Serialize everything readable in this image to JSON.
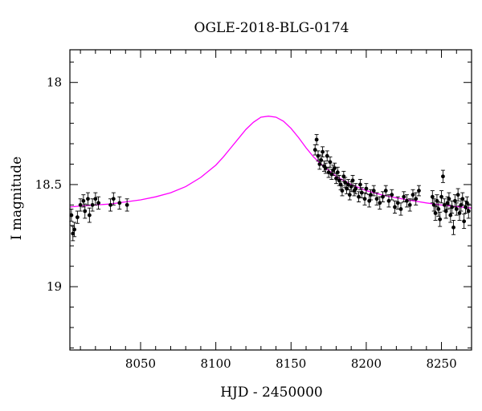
{
  "chart_data": {
    "type": "scatter",
    "title": "OGLE-2018-BLG-0174",
    "xlabel": "HJD - 2450000",
    "ylabel": "I magnitude",
    "xlim": [
      8003,
      8270
    ],
    "ylim": [
      19.31,
      17.84
    ],
    "y_inverted": true,
    "grid": false,
    "x_ticks": [
      8050,
      8100,
      8150,
      8200,
      8250
    ],
    "y_ticks": [
      18,
      18.5,
      19
    ],
    "colors": {
      "model": "#ff00ff",
      "points": "#000000"
    },
    "model": {
      "type": "line",
      "x": [
        8003,
        8010,
        8020,
        8030,
        8040,
        8050,
        8060,
        8070,
        8080,
        8090,
        8100,
        8105,
        8110,
        8115,
        8120,
        8125,
        8130,
        8135,
        8140,
        8145,
        8150,
        8155,
        8160,
        8165,
        8170,
        8175,
        8180,
        8190,
        8200,
        8210,
        8220,
        8230,
        8240,
        8250,
        8260,
        8270
      ],
      "y": [
        18.61,
        18.605,
        18.6,
        18.595,
        18.585,
        18.575,
        18.56,
        18.54,
        18.51,
        18.465,
        18.405,
        18.365,
        18.32,
        18.275,
        18.23,
        18.195,
        18.17,
        18.165,
        18.17,
        18.19,
        18.225,
        18.27,
        18.32,
        18.365,
        18.4,
        18.43,
        18.46,
        18.5,
        18.53,
        18.55,
        18.565,
        18.578,
        18.59,
        18.6,
        18.608,
        18.615
      ]
    },
    "points": {
      "type": "scatter",
      "x": [
        8004,
        8005,
        8006,
        8008,
        8010,
        8012,
        8013,
        8015,
        8016,
        8018,
        8020,
        8022,
        8030,
        8032,
        8036,
        8041,
        8166,
        8167,
        8168,
        8169,
        8170,
        8171,
        8172,
        8173,
        8174,
        8175,
        8176,
        8177,
        8178,
        8179,
        8180,
        8181,
        8182,
        8183,
        8184,
        8185,
        8186,
        8187,
        8188,
        8189,
        8190,
        8191,
        8192,
        8193,
        8195,
        8196,
        8197,
        8199,
        8200,
        8202,
        8203,
        8205,
        8207,
        8209,
        8211,
        8213,
        8215,
        8217,
        8219,
        8221,
        8223,
        8225,
        8227,
        8229,
        8231,
        8233,
        8235,
        8244,
        8245,
        8246,
        8247,
        8248,
        8249,
        8250,
        8251,
        8252,
        8253,
        8254,
        8255,
        8256,
        8257,
        8258,
        8259,
        8260,
        8261,
        8262,
        8263,
        8264,
        8265,
        8266,
        8267,
        8268
      ],
      "y": [
        18.65,
        18.74,
        18.72,
        18.66,
        18.6,
        18.58,
        18.63,
        18.57,
        18.65,
        18.6,
        18.57,
        18.59,
        18.6,
        18.57,
        18.59,
        18.6,
        18.33,
        18.28,
        18.36,
        18.4,
        18.38,
        18.34,
        18.41,
        18.42,
        18.36,
        18.44,
        18.39,
        18.45,
        18.43,
        18.42,
        18.47,
        18.44,
        18.48,
        18.5,
        18.53,
        18.46,
        18.49,
        18.52,
        18.5,
        18.55,
        18.51,
        18.48,
        18.53,
        18.52,
        18.56,
        18.5,
        18.54,
        18.57,
        18.52,
        18.58,
        18.55,
        18.53,
        18.57,
        18.59,
        18.56,
        18.53,
        18.58,
        18.55,
        18.61,
        18.59,
        18.62,
        18.56,
        18.58,
        18.6,
        18.55,
        18.57,
        18.53,
        18.56,
        18.6,
        18.64,
        18.58,
        18.62,
        18.67,
        18.56,
        18.46,
        18.6,
        18.63,
        18.59,
        18.57,
        18.65,
        18.61,
        18.71,
        18.58,
        18.62,
        18.55,
        18.64,
        18.6,
        18.57,
        18.68,
        18.61,
        18.59,
        18.63
      ],
      "err": [
        0.03,
        0.035,
        0.035,
        0.03,
        0.03,
        0.03,
        0.035,
        0.03,
        0.035,
        0.03,
        0.03,
        0.03,
        0.03,
        0.03,
        0.03,
        0.03,
        0.025,
        0.025,
        0.025,
        0.025,
        0.025,
        0.025,
        0.025,
        0.025,
        0.025,
        0.025,
        0.025,
        0.025,
        0.025,
        0.025,
        0.025,
        0.025,
        0.025,
        0.025,
        0.025,
        0.025,
        0.025,
        0.025,
        0.025,
        0.025,
        0.025,
        0.025,
        0.025,
        0.025,
        0.025,
        0.025,
        0.025,
        0.03,
        0.025,
        0.03,
        0.025,
        0.025,
        0.03,
        0.03,
        0.025,
        0.025,
        0.03,
        0.025,
        0.03,
        0.03,
        0.03,
        0.025,
        0.03,
        0.03,
        0.025,
        0.03,
        0.025,
        0.03,
        0.03,
        0.035,
        0.03,
        0.035,
        0.035,
        0.03,
        0.03,
        0.03,
        0.035,
        0.03,
        0.03,
        0.035,
        0.03,
        0.035,
        0.03,
        0.03,
        0.03,
        0.035,
        0.03,
        0.03,
        0.035,
        0.03,
        0.03,
        0.035
      ]
    }
  }
}
